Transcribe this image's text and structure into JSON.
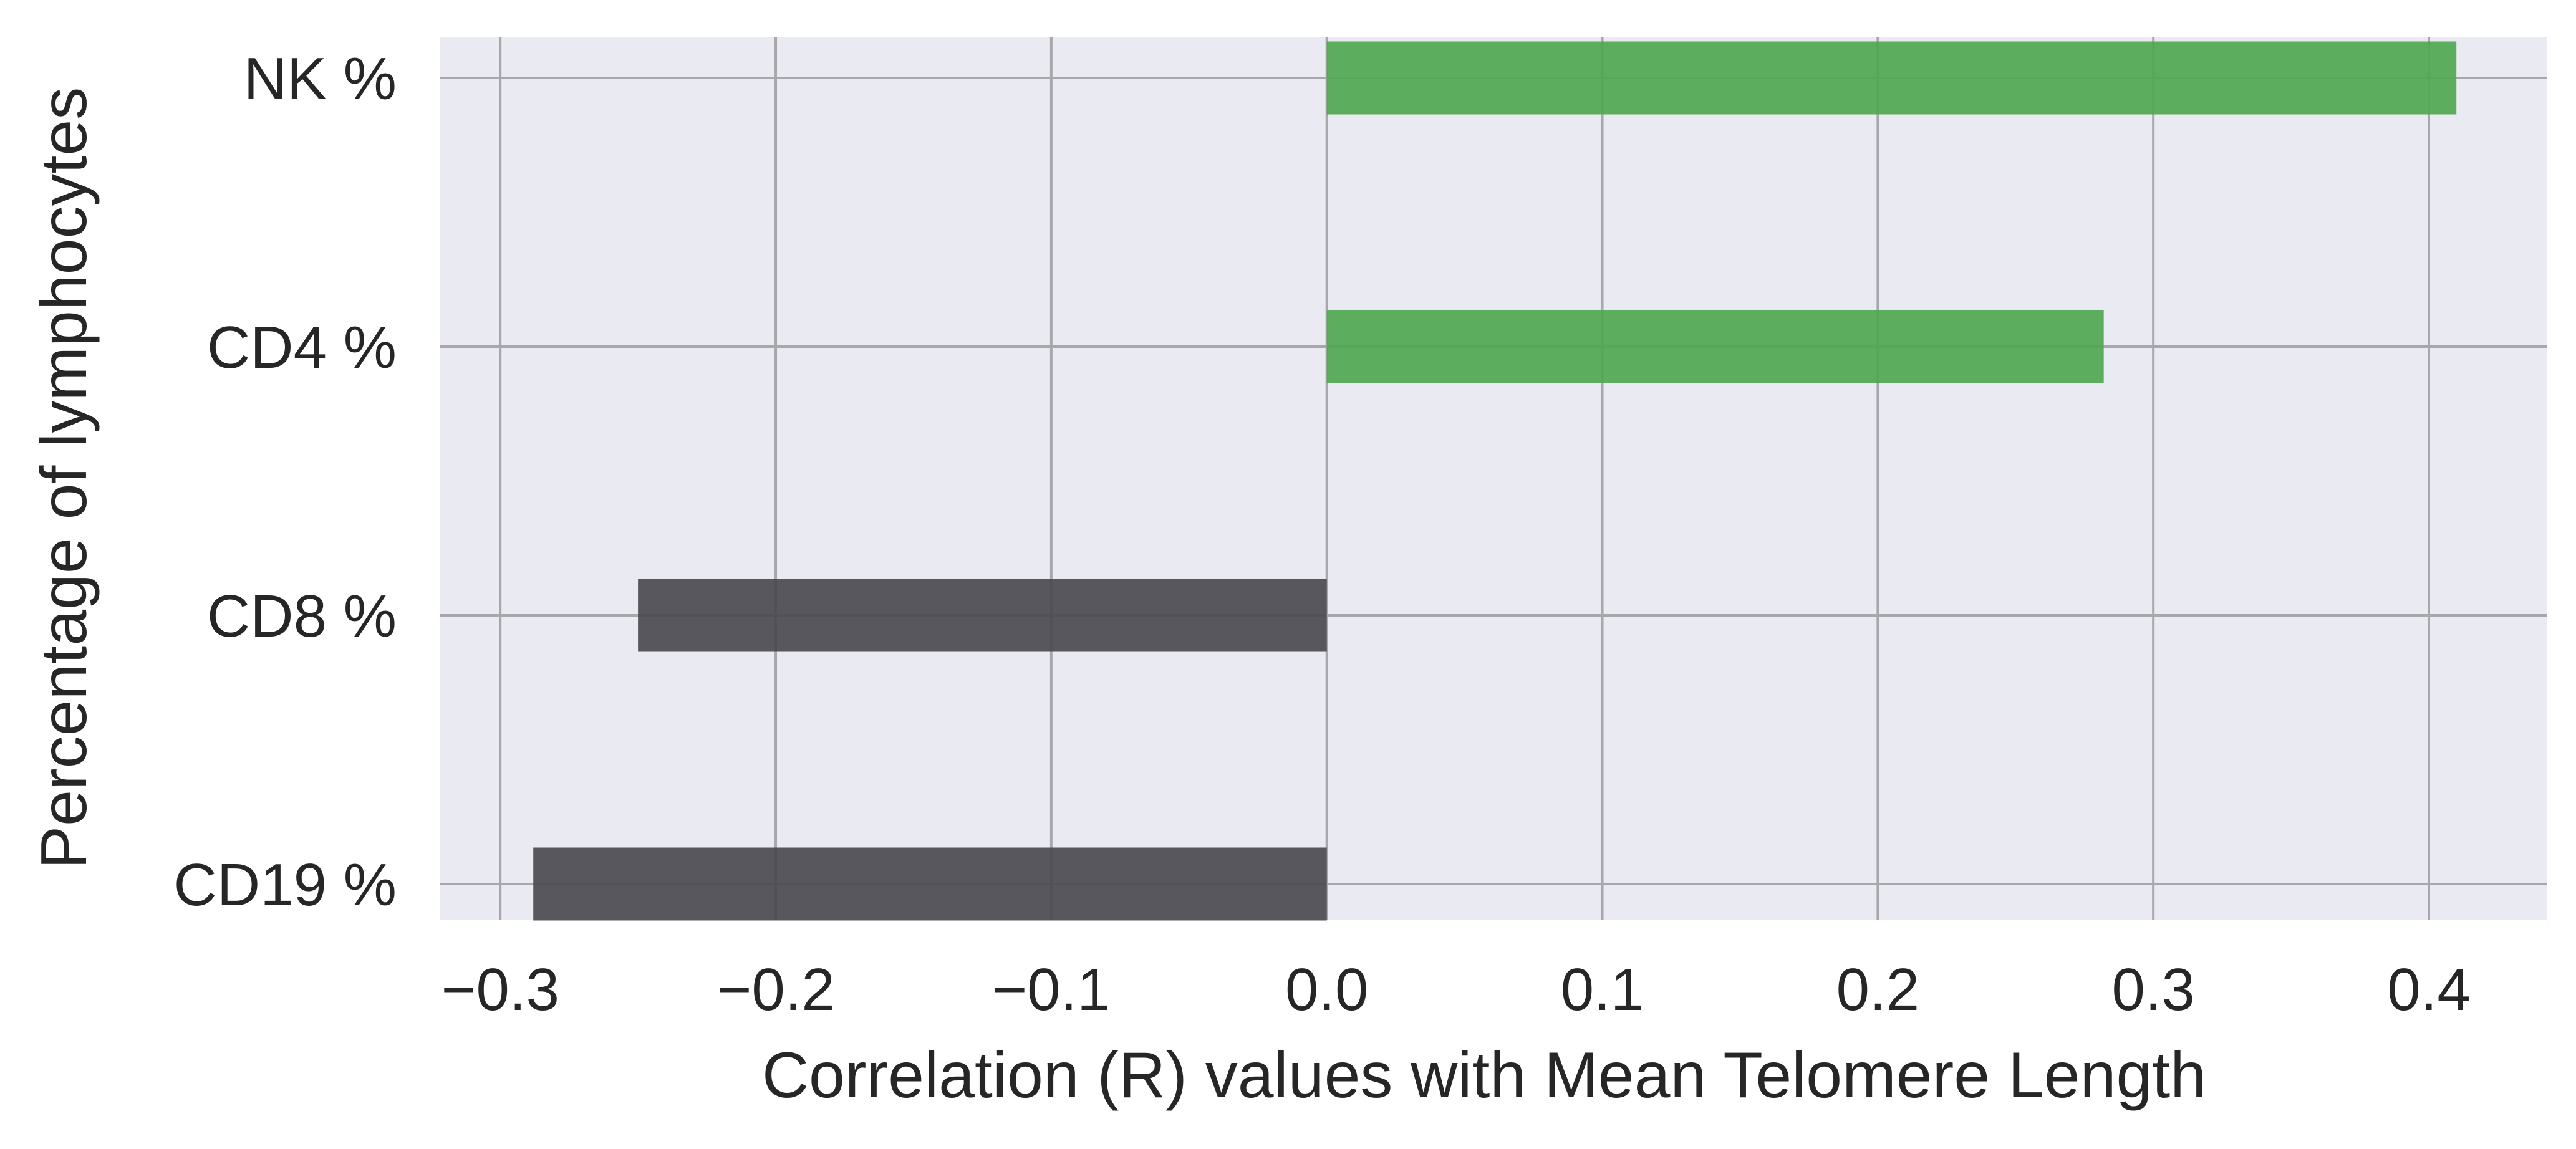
{
  "chart_data": {
    "type": "bar",
    "orientation": "horizontal",
    "title": "",
    "xlabel": "Correlation (R) values with Mean Telomere Length",
    "ylabel": "Percentage of lymphocytes",
    "categories": [
      "NK %",
      "CD4 %",
      "CD8 %",
      "CD19 %"
    ],
    "values": [
      0.41,
      0.282,
      -0.25,
      -0.288
    ],
    "xlim": [
      -0.322,
      0.443
    ],
    "xticks": [
      -0.3,
      -0.2,
      -0.1,
      0.0,
      0.1,
      0.2,
      0.3,
      0.4
    ],
    "xtick_labels": [
      "−0.3",
      "−0.2",
      "−0.1",
      "0.0",
      "0.1",
      "0.2",
      "0.3",
      "0.4"
    ],
    "grid": true,
    "legend": "none",
    "colors": {
      "positive": "#4ca64c",
      "negative": "#48474c",
      "background": "#eaeaf2",
      "grid": "#a8a8ac",
      "text": "#262626"
    }
  }
}
